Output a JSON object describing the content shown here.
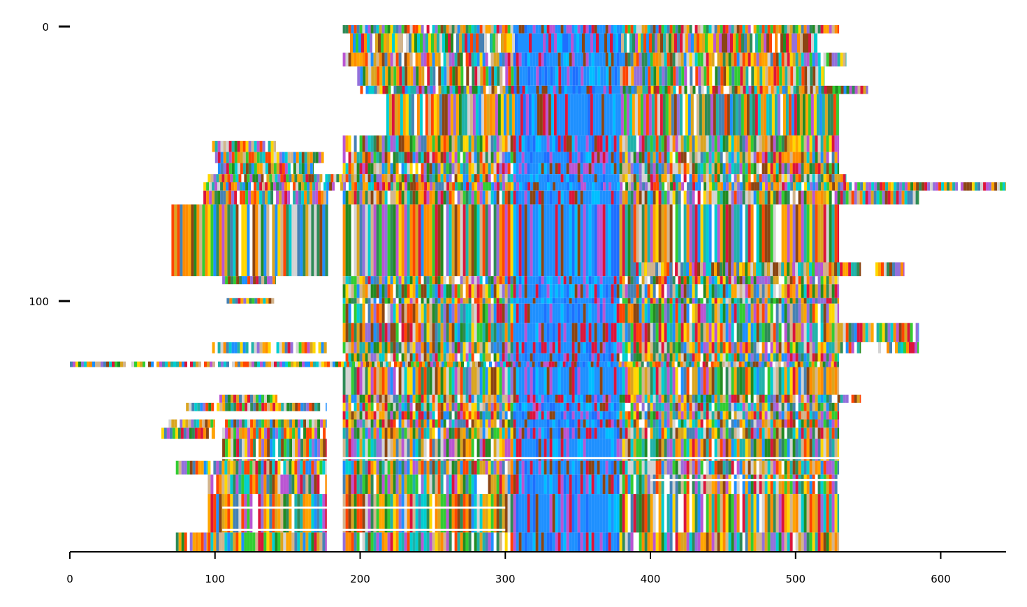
{
  "chart_data": {
    "type": "heatmap",
    "title": "",
    "xlabel": "",
    "ylabel": "",
    "xlim": [
      0,
      645
    ],
    "ylim": [
      191,
      0
    ],
    "x_ticks": [
      0,
      100,
      200,
      300,
      400,
      500,
      600
    ],
    "y_ticks": [
      0,
      100
    ],
    "x_tick_labels": [
      "0",
      "100",
      "200",
      "300",
      "400",
      "500",
      "600"
    ],
    "y_tick_labels": [
      "0",
      "100"
    ],
    "grid": false,
    "legend": "none",
    "palette": [
      "#ff8c00",
      "#ffa500",
      "#228b22",
      "#1e90ff",
      "#dc143c",
      "#00ced1",
      "#ffd700",
      "#9370db",
      "#d2b48c",
      "#8b4513",
      "#d3d3d3",
      "#2e8b57",
      "#ff4500",
      "#4682b4",
      "#32cd32",
      "#ba55d3",
      "#daa520",
      "#20b2aa"
    ],
    "conserved_columns": {
      "color": "#1e90ff",
      "alt_colors": [
        "#1e6fff",
        "#ba55d3",
        "#dc143c",
        "#8b4513",
        "#00bfff"
      ],
      "x_range": [
        305,
        378
      ]
    },
    "row_blocks": [
      {
        "y": [
          0,
          3
        ],
        "segments": [
          [
            188,
            530
          ]
        ]
      },
      {
        "y": [
          3,
          10
        ],
        "segments": [
          [
            193,
            515
          ]
        ]
      },
      {
        "y": [
          10,
          15
        ],
        "segments": [
          [
            188,
            535
          ]
        ]
      },
      {
        "y": [
          15,
          22
        ],
        "segments": [
          [
            198,
            520
          ]
        ]
      },
      {
        "y": [
          22,
          25
        ],
        "segments": [
          [
            200,
            550
          ]
        ]
      },
      {
        "y": [
          25,
          40
        ],
        "segments": [
          [
            218,
            530
          ]
        ]
      },
      {
        "y": [
          40,
          46
        ],
        "segments": [
          [
            188,
            530
          ]
        ]
      },
      {
        "y": [
          42,
          46
        ],
        "segments": [
          [
            98,
            142
          ]
        ]
      },
      {
        "y": [
          46,
          50
        ],
        "segments": [
          [
            100,
            175
          ],
          [
            188,
            530
          ]
        ]
      },
      {
        "y": [
          50,
          54
        ],
        "segments": [
          [
            102,
            168
          ],
          [
            188,
            530
          ]
        ]
      },
      {
        "y": [
          54,
          57
        ],
        "segments": [
          [
            95,
            188
          ],
          [
            188,
            535
          ]
        ]
      },
      {
        "y": [
          57,
          60
        ],
        "segments": [
          [
            92,
            645
          ]
        ]
      },
      {
        "y": [
          60,
          65
        ],
        "segments": [
          [
            92,
            178
          ],
          [
            188,
            585
          ]
        ]
      },
      {
        "y": [
          65,
          91
        ],
        "segments": [
          [
            70,
            178
          ],
          [
            188,
            530
          ]
        ]
      },
      {
        "y": [
          86,
          91
        ],
        "segments": [
          [
            388,
            545
          ],
          [
            555,
            575
          ]
        ]
      },
      {
        "y": [
          91,
          94
        ],
        "segments": [
          [
            105,
            142
          ],
          [
            188,
            530
          ]
        ]
      },
      {
        "y": [
          94,
          99
        ],
        "segments": [
          [
            188,
            530
          ]
        ]
      },
      {
        "y": [
          99,
          101
        ],
        "segments": [
          [
            108,
            142
          ],
          [
            188,
            530
          ]
        ]
      },
      {
        "y": [
          101,
          108
        ],
        "segments": [
          [
            188,
            530
          ]
        ]
      },
      {
        "y": [
          108,
          115
        ],
        "segments": [
          [
            188,
            585
          ]
        ]
      },
      {
        "y": [
          115,
          119
        ],
        "segments": [
          [
            98,
            177
          ],
          [
            188,
            545
          ],
          [
            555,
            585
          ]
        ]
      },
      {
        "y": [
          119,
          122
        ],
        "segments": [
          [
            188,
            530
          ]
        ]
      },
      {
        "y": [
          122,
          124
        ],
        "segments": [
          [
            0,
            305
          ],
          [
            305,
            530
          ]
        ]
      },
      {
        "y": [
          124,
          134
        ],
        "segments": [
          [
            188,
            530
          ]
        ]
      },
      {
        "y": [
          134,
          137
        ],
        "segments": [
          [
            103,
            143
          ],
          [
            188,
            545
          ]
        ]
      },
      {
        "y": [
          137,
          140
        ],
        "segments": [
          [
            80,
            177
          ],
          [
            188,
            530
          ]
        ]
      },
      {
        "y": [
          140,
          143
        ],
        "segments": [
          [
            188,
            530
          ]
        ]
      },
      {
        "y": [
          143,
          146
        ],
        "segments": [
          [
            68,
            100
          ],
          [
            105,
            177
          ],
          [
            188,
            530
          ]
        ]
      },
      {
        "y": [
          146,
          150
        ],
        "segments": [
          [
            63,
            100
          ],
          [
            105,
            177
          ],
          [
            188,
            530
          ]
        ]
      },
      {
        "y": [
          150,
          158
        ],
        "segments": [
          [
            105,
            177
          ],
          [
            188,
            530
          ]
        ]
      },
      {
        "y": [
          158,
          163
        ],
        "segments": [
          [
            73,
            95
          ],
          [
            95,
            177
          ],
          [
            188,
            530
          ]
        ]
      },
      {
        "y": [
          163,
          170
        ],
        "segments": [
          [
            95,
            177
          ],
          [
            188,
            530
          ]
        ]
      },
      {
        "y": [
          170,
          184
        ],
        "segments": [
          [
            95,
            177
          ],
          [
            188,
            530
          ]
        ]
      },
      {
        "y": [
          184,
          191
        ],
        "segments": [
          [
            73,
            95
          ],
          [
            95,
            177
          ],
          [
            188,
            530
          ]
        ]
      }
    ],
    "row_gaps": [
      {
        "y": 157,
        "x": [
          105,
          530
        ]
      },
      {
        "y": 175,
        "x": [
          105,
          300
        ]
      },
      {
        "y": 165,
        "x": [
          400,
          530
        ]
      },
      {
        "y": 183,
        "x": [
          105,
          300
        ]
      }
    ]
  }
}
